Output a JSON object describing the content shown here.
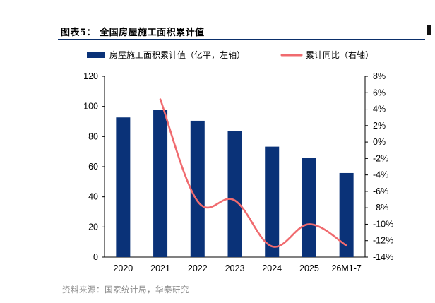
{
  "figure_title": "图表5：  全国房屋施工面积累计值",
  "source_note": "资料来源：国家统计局，华泰研究",
  "colors": {
    "bar": "#0a3278",
    "line": "#f06b6f",
    "rule": "#0b2f6b"
  },
  "chart_data": {
    "type": "bar+line",
    "categories": [
      "2020",
      "2021",
      "2022",
      "2023",
      "2024",
      "2025",
      "26M1-7"
    ],
    "series": [
      {
        "name": "房屋施工面积累计值（亿平，左轴）",
        "type": "bar",
        "axis": "left",
        "values": [
          92.7,
          97.5,
          90.5,
          83.8,
          73.3,
          65.9,
          55.8
        ]
      },
      {
        "name": "累计同比（右轴）",
        "type": "line",
        "axis": "right",
        "values": [
          null,
          5.2,
          -7.2,
          -7.1,
          -12.7,
          -10.0,
          -12.6
        ]
      }
    ],
    "left_axis": {
      "ylim": [
        0,
        120
      ],
      "ticks": [
        "0",
        "20",
        "40",
        "60",
        "80",
        "100",
        "120"
      ]
    },
    "right_axis": {
      "ylim": [
        -14,
        8
      ],
      "ticks": [
        "-14%",
        "-12%",
        "-10%",
        "-8%",
        "-6%",
        "-4%",
        "-2%",
        "0%",
        "2%",
        "4%",
        "6%",
        "8%"
      ]
    },
    "legend_position": "top",
    "grid": false
  }
}
